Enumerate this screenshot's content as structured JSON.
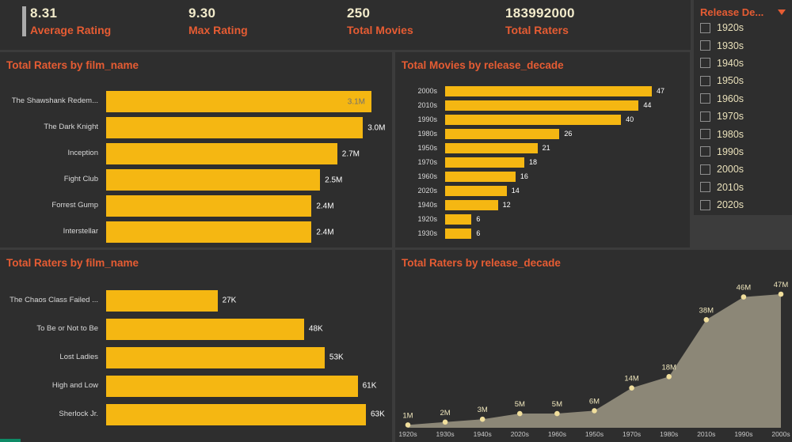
{
  "header": {
    "kpis": [
      {
        "value": "8.31",
        "label": "Average Rating"
      },
      {
        "value": "9.30",
        "label": "Max Rating"
      },
      {
        "value": "250",
        "label": "Total Movies"
      },
      {
        "value": "183992000",
        "label": "Total Raters"
      }
    ]
  },
  "filter": {
    "title": "Release De...",
    "options": [
      "1920s",
      "1930s",
      "1940s",
      "1950s",
      "1960s",
      "1970s",
      "1980s",
      "1990s",
      "2000s",
      "2010s",
      "2020s"
    ],
    "checked": []
  },
  "colors": {
    "background": "#3C3C3C",
    "panel": "#2E2E2E",
    "accent_orange": "#E65C33",
    "bar_yellow": "#F5B712",
    "kpi_value": "#F2EBCB",
    "category_label": "#D9D9D9",
    "value_label": "#FFFFFF",
    "value_label_inside": "#707070",
    "filter_label": "#E9E0BA",
    "area_fill": "rgba(219,209,180,0.55)",
    "area_point": "#F0DE9C",
    "area_value_label": "#EFE6BC",
    "axis_label": "#C9C9C9"
  },
  "chart_data": [
    {
      "id": "total-raters-by-film-top",
      "type": "bar",
      "orientation": "horizontal",
      "title": "Total Raters by film_name",
      "categories": [
        "The Shawshank Redem...",
        "The Dark Knight",
        "Inception",
        "Fight Club",
        "Forrest Gump",
        "Interstellar"
      ],
      "values": [
        3100000,
        3000000,
        2700000,
        2500000,
        2400000,
        2400000
      ],
      "value_labels": [
        "3.1M",
        "3.0M",
        "2.7M",
        "2.5M",
        "2.4M",
        "2.4M"
      ],
      "xlim": [
        0,
        3100000
      ],
      "max_label_inside": true,
      "grid": false,
      "legend": false
    },
    {
      "id": "total-movies-by-release-decade",
      "type": "bar",
      "orientation": "horizontal",
      "title": "Total Movies by release_decade",
      "categories": [
        "2000s",
        "2010s",
        "1990s",
        "1980s",
        "1950s",
        "1970s",
        "1960s",
        "2020s",
        "1940s",
        "1920s",
        "1930s"
      ],
      "values": [
        47,
        44,
        40,
        26,
        21,
        18,
        16,
        14,
        12,
        6,
        6
      ],
      "value_labels": [
        "47",
        "44",
        "40",
        "26",
        "21",
        "18",
        "16",
        "14",
        "12",
        "6",
        "6"
      ],
      "xlim": [
        0,
        47
      ],
      "max_label_inside": false,
      "grid": false,
      "legend": false
    },
    {
      "id": "total-raters-by-film-bottom",
      "type": "bar",
      "orientation": "horizontal",
      "title": "Total Raters by film_name",
      "categories": [
        "The Chaos Class Failed ...",
        "To Be or Not to Be",
        "Lost Ladies",
        "High and Low",
        "Sherlock Jr."
      ],
      "values": [
        27000,
        48000,
        53000,
        61000,
        63000
      ],
      "value_labels": [
        "27K",
        "48K",
        "53K",
        "61K",
        "63K"
      ],
      "xlim": [
        0,
        63000
      ],
      "max_label_inside": false,
      "grid": false,
      "legend": false
    },
    {
      "id": "total-raters-by-release-decade",
      "type": "area",
      "title": "Total Raters by release_decade",
      "categories": [
        "1920s",
        "1930s",
        "1940s",
        "2020s",
        "1960s",
        "1950s",
        "1970s",
        "1980s",
        "2010s",
        "1990s",
        "2000s"
      ],
      "values": [
        1000000,
        2000000,
        3000000,
        5000000,
        5000000,
        6000000,
        14000000,
        18000000,
        38000000,
        46000000,
        47000000
      ],
      "value_labels": [
        "1M",
        "2M",
        "3M",
        "5M",
        "5M",
        "6M",
        "14M",
        "18M",
        "38M",
        "46M",
        "47M"
      ],
      "ylim": [
        0,
        47000000
      ],
      "grid": false,
      "legend": false
    }
  ]
}
